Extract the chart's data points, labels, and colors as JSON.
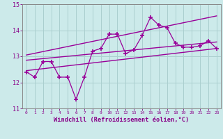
{
  "x": [
    0,
    1,
    2,
    3,
    4,
    5,
    6,
    7,
    8,
    9,
    10,
    11,
    12,
    13,
    14,
    15,
    16,
    17,
    18,
    19,
    20,
    21,
    22,
    23
  ],
  "y_scatter": [
    12.4,
    12.2,
    12.8,
    12.8,
    12.2,
    12.2,
    11.35,
    12.2,
    13.2,
    13.3,
    13.85,
    13.85,
    13.1,
    13.25,
    13.8,
    14.5,
    14.2,
    14.1,
    13.5,
    13.35,
    13.35,
    13.4,
    13.6,
    13.3
  ],
  "trend1_x": [
    0,
    23
  ],
  "trend1_y": [
    12.45,
    13.3
  ],
  "trend2_x": [
    0,
    23
  ],
  "trend2_y": [
    12.85,
    13.55
  ],
  "trend3_x": [
    0,
    23
  ],
  "trend3_y": [
    13.05,
    14.55
  ],
  "xlim": [
    -0.5,
    23.5
  ],
  "ylim": [
    11.0,
    15.0
  ],
  "yticks": [
    11,
    12,
    13,
    14,
    15
  ],
  "xticks": [
    0,
    1,
    2,
    3,
    4,
    5,
    6,
    7,
    8,
    9,
    10,
    11,
    12,
    13,
    14,
    15,
    16,
    17,
    18,
    19,
    20,
    21,
    22,
    23
  ],
  "xlabel": "Windchill (Refroidissement éolien,°C)",
  "line_color": "#990099",
  "bg_color": "#cceaea",
  "grid_color": "#aacfcf",
  "label_color": "#880088",
  "tick_color": "#880088",
  "axis_color": "#888888"
}
